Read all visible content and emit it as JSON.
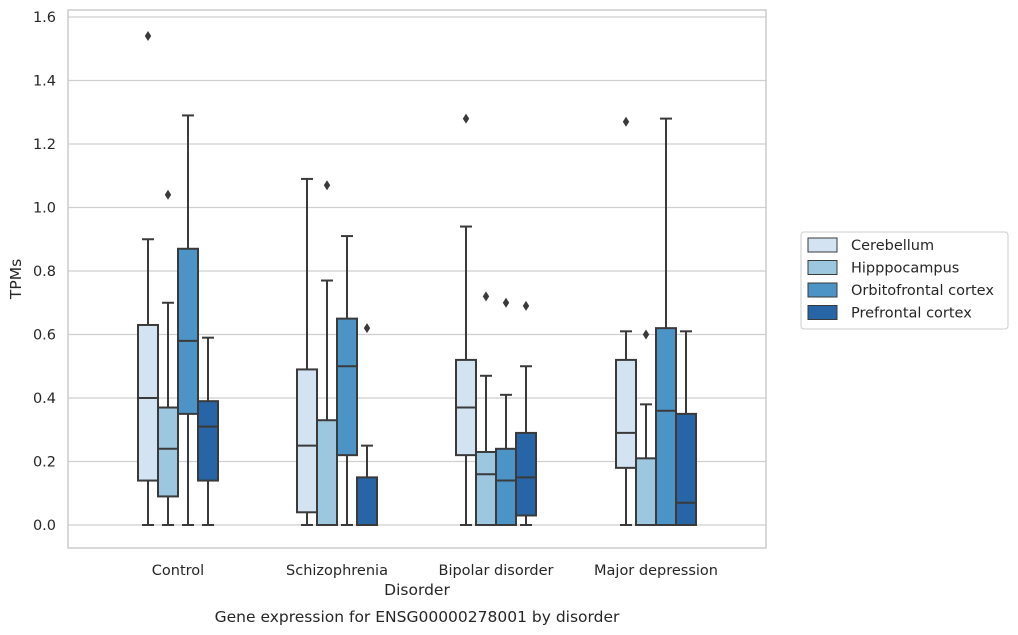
{
  "caption": "Gene expression for ENSG00000278001 by disorder",
  "colors": {
    "Cerebellum": "#d3e3f2",
    "Hipppocampus": "#9cc7df",
    "Orbitofrontal cortex": "#4c94c6",
    "Prefrontal cortex": "#2765a6",
    "grid": "#cfcfcf",
    "frame": "#cccccc",
    "line": "#3a3a3a"
  },
  "chart_data": {
    "type": "box",
    "xlabel": "Disorder",
    "ylabel": "TPMs",
    "ylim": [
      -0.075,
      1.62
    ],
    "yticks": [
      0.0,
      0.2,
      0.4,
      0.6,
      0.8,
      1.0,
      1.2,
      1.4,
      1.6
    ],
    "ytick_labels": [
      "0.0",
      "0.2",
      "0.4",
      "0.6",
      "0.8",
      "1.0",
      "1.2",
      "1.4",
      "1.6"
    ],
    "grid": "horizontal",
    "legend_position": "right",
    "categories": [
      "Control",
      "Schizophrenia",
      "Bipolar disorder",
      "Major depression"
    ],
    "series": [
      {
        "name": "Cerebellum",
        "boxes": [
          {
            "whislo": 0.0,
            "q1": 0.14,
            "med": 0.4,
            "q3": 0.63,
            "whishi": 0.9,
            "fliers": [
              1.54
            ]
          },
          {
            "whislo": 0.0,
            "q1": 0.04,
            "med": 0.25,
            "q3": 0.49,
            "whishi": 1.09,
            "fliers": []
          },
          {
            "whislo": 0.0,
            "q1": 0.22,
            "med": 0.37,
            "q3": 0.52,
            "whishi": 0.94,
            "fliers": [
              1.28
            ]
          },
          {
            "whislo": 0.0,
            "q1": 0.18,
            "med": 0.29,
            "q3": 0.52,
            "whishi": 0.61,
            "fliers": [
              1.27
            ]
          }
        ]
      },
      {
        "name": "Hipppocampus",
        "boxes": [
          {
            "whislo": 0.0,
            "q1": 0.09,
            "med": 0.24,
            "q3": 0.37,
            "whishi": 0.7,
            "fliers": [
              1.04
            ]
          },
          {
            "whislo": 0.0,
            "q1": 0.0,
            "med": 0.0,
            "q3": 0.33,
            "whishi": 0.77,
            "fliers": [
              1.07
            ]
          },
          {
            "whislo": 0.0,
            "q1": 0.0,
            "med": 0.16,
            "q3": 0.23,
            "whishi": 0.47,
            "fliers": [
              0.72
            ]
          },
          {
            "whislo": 0.0,
            "q1": 0.0,
            "med": 0.0,
            "q3": 0.21,
            "whishi": 0.38,
            "fliers": [
              0.6
            ]
          }
        ]
      },
      {
        "name": "Orbitofrontal cortex",
        "boxes": [
          {
            "whislo": 0.0,
            "q1": 0.35,
            "med": 0.58,
            "q3": 0.87,
            "whishi": 1.29,
            "fliers": []
          },
          {
            "whislo": 0.0,
            "q1": 0.22,
            "med": 0.5,
            "q3": 0.65,
            "whishi": 0.91,
            "fliers": []
          },
          {
            "whislo": 0.0,
            "q1": 0.0,
            "med": 0.14,
            "q3": 0.24,
            "whishi": 0.41,
            "fliers": [
              0.7
            ]
          },
          {
            "whislo": 0.0,
            "q1": 0.0,
            "med": 0.36,
            "q3": 0.62,
            "whishi": 1.28,
            "fliers": []
          }
        ]
      },
      {
        "name": "Prefrontal cortex",
        "boxes": [
          {
            "whislo": 0.0,
            "q1": 0.14,
            "med": 0.31,
            "q3": 0.39,
            "whishi": 0.59,
            "fliers": []
          },
          {
            "whislo": 0.0,
            "q1": 0.0,
            "med": 0.0,
            "q3": 0.15,
            "whishi": 0.25,
            "fliers": [
              0.62
            ]
          },
          {
            "whislo": 0.0,
            "q1": 0.03,
            "med": 0.15,
            "q3": 0.29,
            "whishi": 0.5,
            "fliers": [
              0.69
            ]
          },
          {
            "whislo": 0.0,
            "q1": 0.0,
            "med": 0.07,
            "q3": 0.35,
            "whishi": 0.61,
            "fliers": []
          }
        ]
      }
    ]
  }
}
